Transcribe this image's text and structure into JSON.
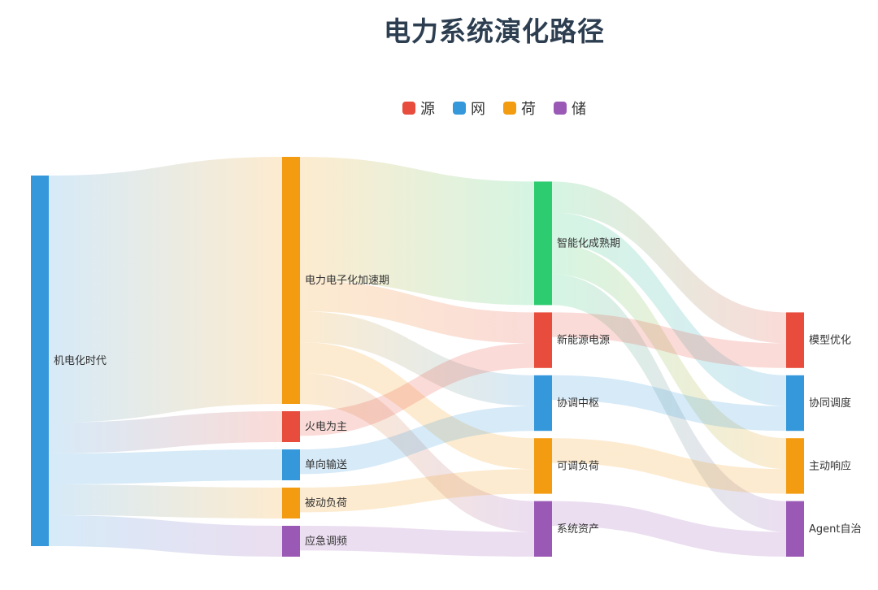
{
  "title": "电力系统演化路径",
  "legend": [
    {
      "label": "源",
      "color": "#e74c3c"
    },
    {
      "label": "网",
      "color": "#3498db"
    },
    {
      "label": "荷",
      "color": "#f39c12"
    },
    {
      "label": "储",
      "color": "#9b59b6"
    }
  ],
  "chart_data": {
    "type": "sankey",
    "nodes": [
      {
        "id": "n0",
        "label": "机电化时代",
        "color": "#3498db",
        "stage": 0
      },
      {
        "id": "n1",
        "label": "电力电子化加速期",
        "color": "#f39c12",
        "stage": 1
      },
      {
        "id": "n2",
        "label": "火电为主",
        "color": "#e74c3c",
        "stage": 1
      },
      {
        "id": "n3",
        "label": "单向输送",
        "color": "#3498db",
        "stage": 1
      },
      {
        "id": "n4",
        "label": "被动负荷",
        "color": "#f39c12",
        "stage": 1
      },
      {
        "id": "n5",
        "label": "应急调频",
        "color": "#9b59b6",
        "stage": 1
      },
      {
        "id": "n6",
        "label": "智能化成熟期",
        "color": "#2ecc71",
        "stage": 2
      },
      {
        "id": "n7",
        "label": "新能源电源",
        "color": "#e74c3c",
        "stage": 2
      },
      {
        "id": "n8",
        "label": "协调中枢",
        "color": "#3498db",
        "stage": 2
      },
      {
        "id": "n9",
        "label": "可调负荷",
        "color": "#f39c12",
        "stage": 2
      },
      {
        "id": "n10",
        "label": "系统资产",
        "color": "#9b59b6",
        "stage": 2
      },
      {
        "id": "n11",
        "label": "模型优化",
        "color": "#e74c3c",
        "stage": 3
      },
      {
        "id": "n12",
        "label": "协同调度",
        "color": "#3498db",
        "stage": 3
      },
      {
        "id": "n13",
        "label": "主动响应",
        "color": "#f39c12",
        "stage": 3
      },
      {
        "id": "n14",
        "label": "Agent自治",
        "color": "#9b59b6",
        "stage": 3
      }
    ],
    "links": [
      {
        "source": "n0",
        "target": "n1",
        "value": 40
      },
      {
        "source": "n0",
        "target": "n2",
        "value": 5
      },
      {
        "source": "n0",
        "target": "n3",
        "value": 5
      },
      {
        "source": "n0",
        "target": "n4",
        "value": 5
      },
      {
        "source": "n0",
        "target": "n5",
        "value": 5
      },
      {
        "source": "n1",
        "target": "n6",
        "value": 20
      },
      {
        "source": "n1",
        "target": "n7",
        "value": 5
      },
      {
        "source": "n1",
        "target": "n8",
        "value": 5
      },
      {
        "source": "n1",
        "target": "n9",
        "value": 5
      },
      {
        "source": "n1",
        "target": "n10",
        "value": 5
      },
      {
        "source": "n2",
        "target": "n7",
        "value": 4
      },
      {
        "source": "n3",
        "target": "n8",
        "value": 4
      },
      {
        "source": "n4",
        "target": "n9",
        "value": 4
      },
      {
        "source": "n5",
        "target": "n10",
        "value": 4
      },
      {
        "source": "n6",
        "target": "n11",
        "value": 5
      },
      {
        "source": "n6",
        "target": "n12",
        "value": 5
      },
      {
        "source": "n6",
        "target": "n13",
        "value": 5
      },
      {
        "source": "n6",
        "target": "n14",
        "value": 5
      },
      {
        "source": "n7",
        "target": "n11",
        "value": 4
      },
      {
        "source": "n8",
        "target": "n12",
        "value": 4
      },
      {
        "source": "n9",
        "target": "n13",
        "value": 4
      },
      {
        "source": "n10",
        "target": "n14",
        "value": 4
      }
    ]
  }
}
